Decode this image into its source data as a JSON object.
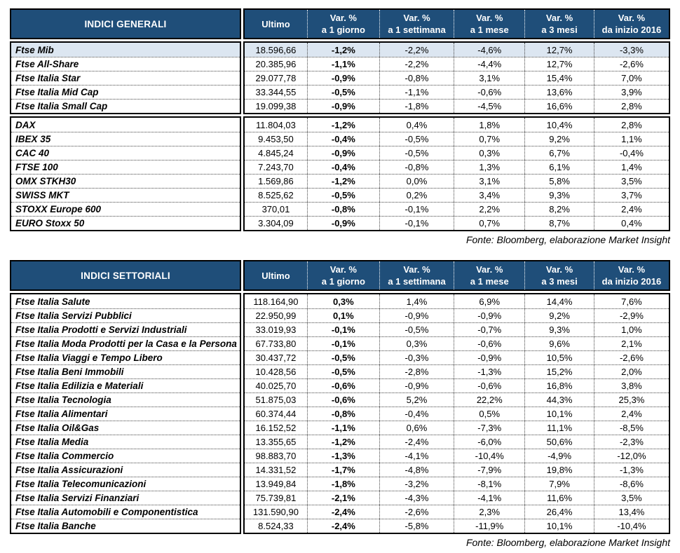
{
  "colors": {
    "header_bg": "#1F4E79",
    "highlight_row_bg": "#DCE6F1",
    "border": "#000000"
  },
  "tables": [
    {
      "title": "INDICI GENERALI",
      "fonte": "Fonte: Bloomberg, elaborazione Market Insight",
      "columns": [
        {
          "top": "Ultimo",
          "bottom": ""
        },
        {
          "top": "Var. %",
          "bottom": "a 1 giorno"
        },
        {
          "top": "Var. %",
          "bottom": "a 1 settimana"
        },
        {
          "top": "Var. %",
          "bottom": "a 1 mese"
        },
        {
          "top": "Var. %",
          "bottom": "a 3 mesi"
        },
        {
          "top": "Var. %",
          "bottom": "da inizio 2016"
        }
      ],
      "groups": [
        {
          "rows": [
            {
              "name": "Ftse Mib",
              "highlight": true,
              "values": [
                "18.596,66",
                "-1,2%",
                "-2,2%",
                "-4,6%",
                "12,7%",
                "-3,3%"
              ]
            },
            {
              "name": "Ftse All-Share",
              "values": [
                "20.385,96",
                "-1,1%",
                "-2,2%",
                "-4,4%",
                "12,7%",
                "-2,6%"
              ]
            },
            {
              "name": "Ftse Italia Star",
              "values": [
                "29.077,78",
                "-0,9%",
                "-0,8%",
                "3,1%",
                "15,4%",
                "7,0%"
              ]
            },
            {
              "name": "Ftse Italia Mid Cap",
              "values": [
                "33.344,55",
                "-0,5%",
                "-1,1%",
                "-0,6%",
                "13,6%",
                "3,9%"
              ]
            },
            {
              "name": "Ftse Italia Small Cap",
              "values": [
                "19.099,38",
                "-0,9%",
                "-1,8%",
                "-4,5%",
                "16,6%",
                "2,8%"
              ]
            }
          ]
        },
        {
          "rows": [
            {
              "name": "DAX",
              "values": [
                "11.804,03",
                "-1,2%",
                "0,4%",
                "1,8%",
                "10,4%",
                "2,8%"
              ]
            },
            {
              "name": "IBEX 35",
              "values": [
                "9.453,50",
                "-0,4%",
                "-0,5%",
                "0,7%",
                "9,2%",
                "1,1%"
              ]
            },
            {
              "name": "CAC 40",
              "values": [
                "4.845,24",
                "-0,9%",
                "-0,5%",
                "0,3%",
                "6,7%",
                "-0,4%"
              ]
            },
            {
              "name": "FTSE 100",
              "values": [
                "7.243,70",
                "-0,4%",
                "-0,8%",
                "1,3%",
                "6,1%",
                "1,4%"
              ]
            },
            {
              "name": "OMX STKH30",
              "values": [
                "1.569,86",
                "-1,2%",
                "0,0%",
                "3,1%",
                "5,8%",
                "3,5%"
              ]
            },
            {
              "name": "SWISS MKT",
              "values": [
                "8.525,62",
                "-0,5%",
                "0,2%",
                "3,4%",
                "9,3%",
                "3,7%"
              ]
            },
            {
              "name": "STOXX Europe 600",
              "values": [
                "370,01",
                "-0,8%",
                "-0,1%",
                "2,2%",
                "8,2%",
                "2,4%"
              ]
            },
            {
              "name": "EURO Stoxx 50",
              "values": [
                "3.304,09",
                "-0,9%",
                "-0,1%",
                "0,7%",
                "8,7%",
                "0,4%"
              ]
            }
          ]
        }
      ]
    },
    {
      "title": "INDICI SETTORIALI",
      "fonte": "Fonte: Bloomberg, elaborazione Market Insight",
      "columns": [
        {
          "top": "Ultimo",
          "bottom": ""
        },
        {
          "top": "Var. %",
          "bottom": "a 1 giorno"
        },
        {
          "top": "Var. %",
          "bottom": "a 1 settimana"
        },
        {
          "top": "Var. %",
          "bottom": "a 1 mese"
        },
        {
          "top": "Var. %",
          "bottom": "a 3 mesi"
        },
        {
          "top": "Var. %",
          "bottom": "da inizio 2016"
        }
      ],
      "groups": [
        {
          "rows": [
            {
              "name": "Ftse Italia Salute",
              "values": [
                "118.164,90",
                "0,3%",
                "1,4%",
                "6,9%",
                "14,4%",
                "7,6%"
              ]
            },
            {
              "name": "Ftse Italia Servizi Pubblici",
              "values": [
                "22.950,99",
                "0,1%",
                "-0,9%",
                "-0,9%",
                "9,2%",
                "-2,9%"
              ]
            },
            {
              "name": "Ftse Italia Prodotti e Servizi Industriali",
              "values": [
                "33.019,93",
                "-0,1%",
                "-0,5%",
                "-0,7%",
                "9,3%",
                "1,0%"
              ]
            },
            {
              "name": "Ftse Italia Moda Prodotti per la Casa e la Persona",
              "values": [
                "67.733,80",
                "-0,1%",
                "0,3%",
                "-0,6%",
                "9,6%",
                "2,1%"
              ]
            },
            {
              "name": "Ftse Italia Viaggi e Tempo Libero",
              "values": [
                "30.437,72",
                "-0,5%",
                "-0,3%",
                "-0,9%",
                "10,5%",
                "-2,6%"
              ]
            },
            {
              "name": "Ftse Italia Beni Immobili",
              "values": [
                "10.428,56",
                "-0,5%",
                "-2,8%",
                "-1,3%",
                "15,2%",
                "2,0%"
              ]
            },
            {
              "name": "Ftse Italia Edilizia e Materiali",
              "values": [
                "40.025,70",
                "-0,6%",
                "-0,9%",
                "-0,6%",
                "16,8%",
                "3,8%"
              ]
            },
            {
              "name": "Ftse Italia Tecnologia",
              "values": [
                "51.875,03",
                "-0,6%",
                "5,2%",
                "22,2%",
                "44,3%",
                "25,3%"
              ]
            },
            {
              "name": "Ftse Italia Alimentari",
              "values": [
                "60.374,44",
                "-0,8%",
                "-0,4%",
                "0,5%",
                "10,1%",
                "2,4%"
              ]
            },
            {
              "name": "Ftse Italia Oil&Gas",
              "values": [
                "16.152,52",
                "-1,1%",
                "0,6%",
                "-7,3%",
                "11,1%",
                "-8,5%"
              ]
            },
            {
              "name": "Ftse Italia Media",
              "values": [
                "13.355,65",
                "-1,2%",
                "-2,4%",
                "-6,0%",
                "50,6%",
                "-2,3%"
              ]
            },
            {
              "name": "Ftse Italia Commercio",
              "values": [
                "98.883,70",
                "-1,3%",
                "-4,1%",
                "-10,4%",
                "-4,9%",
                "-12,0%"
              ]
            },
            {
              "name": "Ftse Italia Assicurazioni",
              "values": [
                "14.331,52",
                "-1,7%",
                "-4,8%",
                "-7,9%",
                "19,8%",
                "-1,3%"
              ]
            },
            {
              "name": "Ftse Italia Telecomunicazioni",
              "values": [
                "13.949,84",
                "-1,8%",
                "-3,2%",
                "-8,1%",
                "7,9%",
                "-8,6%"
              ]
            },
            {
              "name": "Ftse Italia Servizi Finanziari",
              "values": [
                "75.739,81",
                "-2,1%",
                "-4,3%",
                "-4,1%",
                "11,6%",
                "3,5%"
              ]
            },
            {
              "name": "Ftse Italia Automobili e Componentistica",
              "values": [
                "131.590,90",
                "-2,4%",
                "-2,6%",
                "2,3%",
                "26,4%",
                "13,4%"
              ]
            },
            {
              "name": "Ftse Italia Banche",
              "values": [
                "8.524,33",
                "-2,4%",
                "-5,8%",
                "-11,9%",
                "10,1%",
                "-10,4%"
              ]
            }
          ]
        }
      ]
    }
  ]
}
